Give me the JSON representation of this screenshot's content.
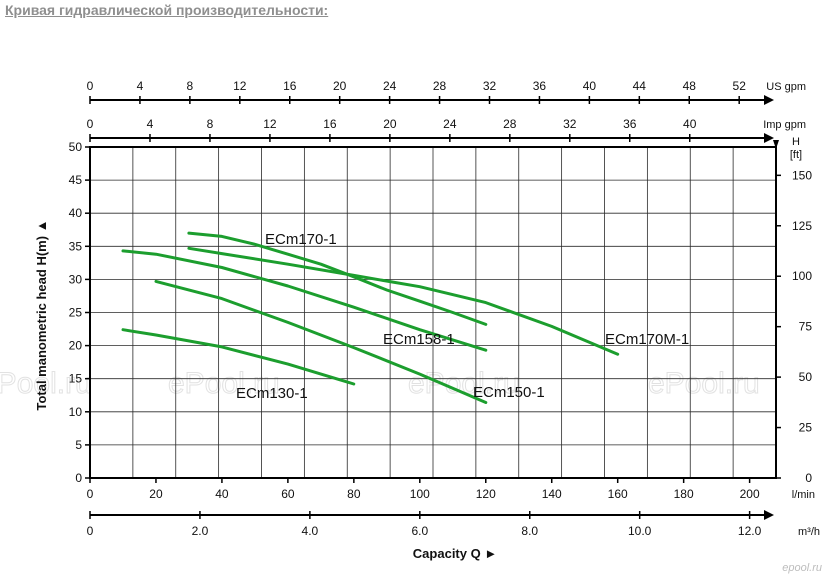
{
  "page": {
    "title": "Кривая гидравлической производительности:",
    "watermark": "ePool.ru",
    "site_logo": "epool.ru"
  },
  "chart_data": {
    "type": "line",
    "title": "",
    "xlabel": "Capacity Q",
    "ylabel": "Total manometric head H(m)",
    "grid": true,
    "xlim": [
      0,
      208
    ],
    "ylim": [
      0,
      50
    ],
    "x_unit": "l/min",
    "y_unit": "m",
    "x_ticks": [
      0,
      20,
      40,
      60,
      80,
      100,
      120,
      140,
      160,
      180,
      200
    ],
    "y_ticks": [
      0,
      5,
      10,
      15,
      20,
      25,
      30,
      35,
      40,
      45,
      50
    ],
    "secondary_axes": {
      "us_gpm": {
        "label": "US gpm",
        "ticks": [
          0,
          4,
          8,
          12,
          16,
          20,
          24,
          28,
          32,
          36,
          40,
          44,
          48,
          52
        ]
      },
      "imp_gpm": {
        "label": "Imp gpm",
        "ticks": [
          0,
          4,
          8,
          12,
          16,
          20,
          24,
          28,
          32,
          36,
          40
        ]
      },
      "m3h": {
        "label": "m³/h",
        "ticks": [
          "0",
          "2.0",
          "4.0",
          "6.0",
          "8.0",
          "10.0",
          "12.0"
        ]
      },
      "head_ft": {
        "label": "H [ft]",
        "ticks": [
          0,
          25,
          50,
          75,
          100,
          125,
          150
        ]
      }
    },
    "series": [
      {
        "name": "ECm170-1",
        "x": [
          30,
          40,
          50,
          60,
          70,
          80,
          90,
          100,
          110,
          120
        ],
        "y": [
          37.0,
          36.5,
          35.3,
          33.8,
          32.3,
          30.4,
          28.4,
          26.7,
          25.0,
          23.2
        ]
      },
      {
        "name": "ECm170M-1",
        "x": [
          30,
          40,
          60,
          80,
          100,
          120,
          140,
          160
        ],
        "y": [
          34.7,
          33.9,
          32.3,
          30.6,
          28.9,
          26.5,
          22.9,
          18.7
        ]
      },
      {
        "name": "ECm158-1",
        "x": [
          10,
          20,
          40,
          60,
          80,
          100,
          120
        ],
        "y": [
          34.3,
          33.8,
          31.8,
          29.0,
          25.8,
          22.4,
          19.3
        ]
      },
      {
        "name": "ECm150-1",
        "x": [
          20,
          40,
          60,
          80,
          100,
          120
        ],
        "y": [
          29.7,
          27.1,
          23.5,
          19.7,
          15.7,
          11.4
        ]
      },
      {
        "name": "ECm130-1",
        "x": [
          10,
          20,
          40,
          60,
          80
        ],
        "y": [
          22.4,
          21.6,
          19.8,
          17.2,
          14.2
        ]
      }
    ],
    "line_color": "#1c9e2e"
  }
}
